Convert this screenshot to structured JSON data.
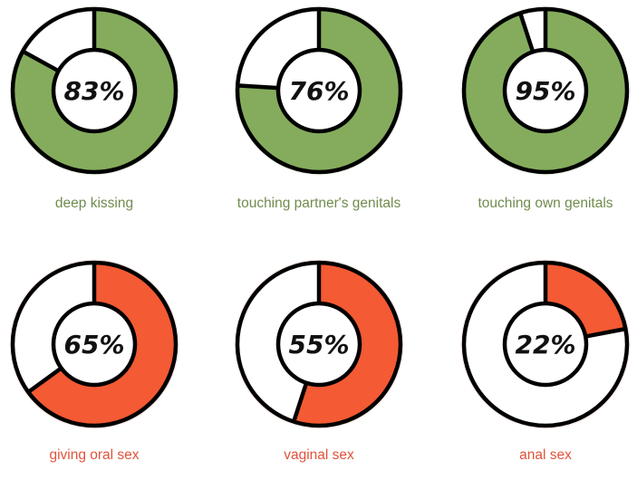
{
  "colors": {
    "green": "#85ac5c",
    "red": "#f45a33",
    "green_text": "#6f8c4e",
    "red_text": "#e0533a",
    "outline": "#000000",
    "empty": "#ffffff"
  },
  "chart_data": {
    "type": "pie",
    "subtype": "donut",
    "title": "",
    "charts": [
      {
        "label": "deep kissing",
        "value": 83,
        "display": "83%",
        "color": "#85ac5c",
        "row": 0,
        "col": 0
      },
      {
        "label": "touching partner's genitals",
        "value": 76,
        "display": "76%",
        "color": "#85ac5c",
        "row": 0,
        "col": 1
      },
      {
        "label": "touching own genitals",
        "value": 95,
        "display": "95%",
        "color": "#85ac5c",
        "row": 0,
        "col": 2
      },
      {
        "label": "giving oral sex",
        "value": 65,
        "display": "65%",
        "color": "#f45a33",
        "row": 1,
        "col": 0
      },
      {
        "label": "vaginal sex",
        "value": 55,
        "display": "55%",
        "color": "#f45a33",
        "row": 1,
        "col": 1
      },
      {
        "label": "anal sex",
        "value": 22,
        "display": "22%",
        "color": "#f45a33",
        "row": 1,
        "col": 2
      }
    ]
  },
  "donuts": [
    {
      "pct": "83%",
      "label": "deep kissing"
    },
    {
      "pct": "76%",
      "label": "touching partner's genitals"
    },
    {
      "pct": "95%",
      "label": "touching own genitals"
    },
    {
      "pct": "65%",
      "label": "giving oral sex"
    },
    {
      "pct": "55%",
      "label": "vaginal sex"
    },
    {
      "pct": "22%",
      "label": "anal sex"
    }
  ]
}
